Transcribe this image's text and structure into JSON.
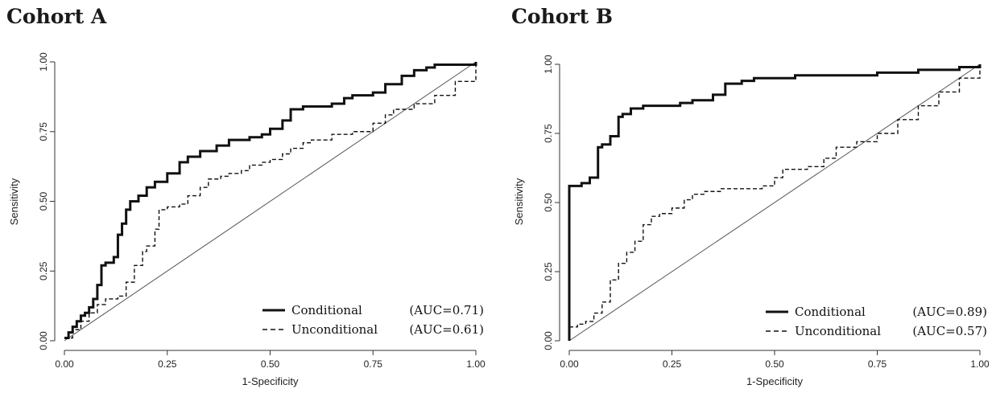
{
  "chart_data": [
    {
      "type": "line",
      "title": "Cohort A",
      "xlabel": "1-Specificity",
      "ylabel": "Sensitivity",
      "xlim": [
        0,
        1
      ],
      "ylim": [
        0,
        1
      ],
      "xticks": [
        "0.00",
        "0.25",
        "0.50",
        "0.75",
        "1.00"
      ],
      "yticks": [
        "0.00",
        "0.25",
        "0.50",
        "0.75",
        "1.00"
      ],
      "legend_position": "bottom-right",
      "series": [
        {
          "name": "Conditional",
          "auc_label": "(AUC=0.71)",
          "style": "solid-thick",
          "x": [
            0,
            0.01,
            0.02,
            0.03,
            0.04,
            0.05,
            0.06,
            0.07,
            0.08,
            0.09,
            0.1,
            0.12,
            0.13,
            0.14,
            0.15,
            0.16,
            0.18,
            0.2,
            0.22,
            0.25,
            0.28,
            0.3,
            0.33,
            0.37,
            0.4,
            0.45,
            0.48,
            0.5,
            0.53,
            0.55,
            0.58,
            0.62,
            0.65,
            0.68,
            0.7,
            0.72,
            0.75,
            0.78,
            0.82,
            0.85,
            0.88,
            0.9,
            0.93,
            0.97,
            1.0
          ],
          "y": [
            0.01,
            0.03,
            0.05,
            0.07,
            0.09,
            0.1,
            0.12,
            0.15,
            0.2,
            0.27,
            0.28,
            0.3,
            0.38,
            0.42,
            0.47,
            0.5,
            0.52,
            0.55,
            0.57,
            0.6,
            0.64,
            0.66,
            0.68,
            0.7,
            0.72,
            0.73,
            0.74,
            0.76,
            0.79,
            0.83,
            0.84,
            0.84,
            0.85,
            0.87,
            0.88,
            0.88,
            0.89,
            0.92,
            0.95,
            0.97,
            0.98,
            0.99,
            0.99,
            0.99,
            1.0
          ]
        },
        {
          "name": "Unconditional",
          "auc_label": "(AUC=0.61)",
          "style": "dashed",
          "x": [
            0,
            0.02,
            0.04,
            0.06,
            0.08,
            0.1,
            0.13,
            0.15,
            0.17,
            0.19,
            0.2,
            0.22,
            0.23,
            0.25,
            0.28,
            0.3,
            0.33,
            0.35,
            0.38,
            0.4,
            0.43,
            0.45,
            0.48,
            0.5,
            0.53,
            0.55,
            0.58,
            0.6,
            0.65,
            0.7,
            0.75,
            0.78,
            0.8,
            0.85,
            0.9,
            0.95,
            1.0
          ],
          "y": [
            0.01,
            0.04,
            0.07,
            0.1,
            0.13,
            0.15,
            0.16,
            0.21,
            0.27,
            0.32,
            0.34,
            0.4,
            0.47,
            0.48,
            0.49,
            0.52,
            0.55,
            0.58,
            0.59,
            0.6,
            0.61,
            0.63,
            0.64,
            0.65,
            0.67,
            0.69,
            0.71,
            0.72,
            0.74,
            0.75,
            0.78,
            0.81,
            0.83,
            0.85,
            0.88,
            0.93,
            1.0
          ]
        }
      ]
    },
    {
      "type": "line",
      "title": "Cohort B",
      "xlabel": "1-Specificity",
      "ylabel": "Sensitivity",
      "xlim": [
        0,
        1
      ],
      "ylim": [
        0,
        1
      ],
      "xticks": [
        "0.00",
        "0.25",
        "0.50",
        "0.75",
        "1.00"
      ],
      "yticks": [
        "0.00",
        "0.25",
        "0.50",
        "0.75",
        "1.00"
      ],
      "legend_position": "bottom-right",
      "series": [
        {
          "name": "Conditional",
          "auc_label": "(AUC=0.89)",
          "style": "solid-thick",
          "x": [
            0,
            0.0,
            0.03,
            0.05,
            0.07,
            0.08,
            0.1,
            0.12,
            0.13,
            0.15,
            0.18,
            0.22,
            0.27,
            0.3,
            0.35,
            0.38,
            0.42,
            0.45,
            0.5,
            0.55,
            0.6,
            0.7,
            0.75,
            0.8,
            0.85,
            0.9,
            0.95,
            1.0
          ],
          "y": [
            0,
            0.56,
            0.57,
            0.59,
            0.7,
            0.71,
            0.74,
            0.81,
            0.82,
            0.84,
            0.85,
            0.85,
            0.86,
            0.87,
            0.89,
            0.93,
            0.94,
            0.95,
            0.95,
            0.96,
            0.96,
            0.96,
            0.97,
            0.97,
            0.98,
            0.98,
            0.99,
            1.0
          ]
        },
        {
          "name": "Unconditional",
          "auc_label": "(AUC=0.57)",
          "style": "dashed",
          "x": [
            0,
            0.02,
            0.04,
            0.06,
            0.08,
            0.1,
            0.12,
            0.14,
            0.16,
            0.18,
            0.2,
            0.22,
            0.25,
            0.28,
            0.3,
            0.33,
            0.37,
            0.42,
            0.47,
            0.5,
            0.52,
            0.55,
            0.58,
            0.62,
            0.65,
            0.7,
            0.75,
            0.8,
            0.85,
            0.9,
            0.95,
            1.0
          ],
          "y": [
            0.05,
            0.06,
            0.07,
            0.1,
            0.14,
            0.22,
            0.28,
            0.32,
            0.36,
            0.42,
            0.45,
            0.46,
            0.48,
            0.51,
            0.53,
            0.54,
            0.55,
            0.55,
            0.56,
            0.59,
            0.62,
            0.62,
            0.63,
            0.66,
            0.7,
            0.72,
            0.75,
            0.8,
            0.85,
            0.9,
            0.95,
            1.0
          ]
        }
      ]
    }
  ]
}
